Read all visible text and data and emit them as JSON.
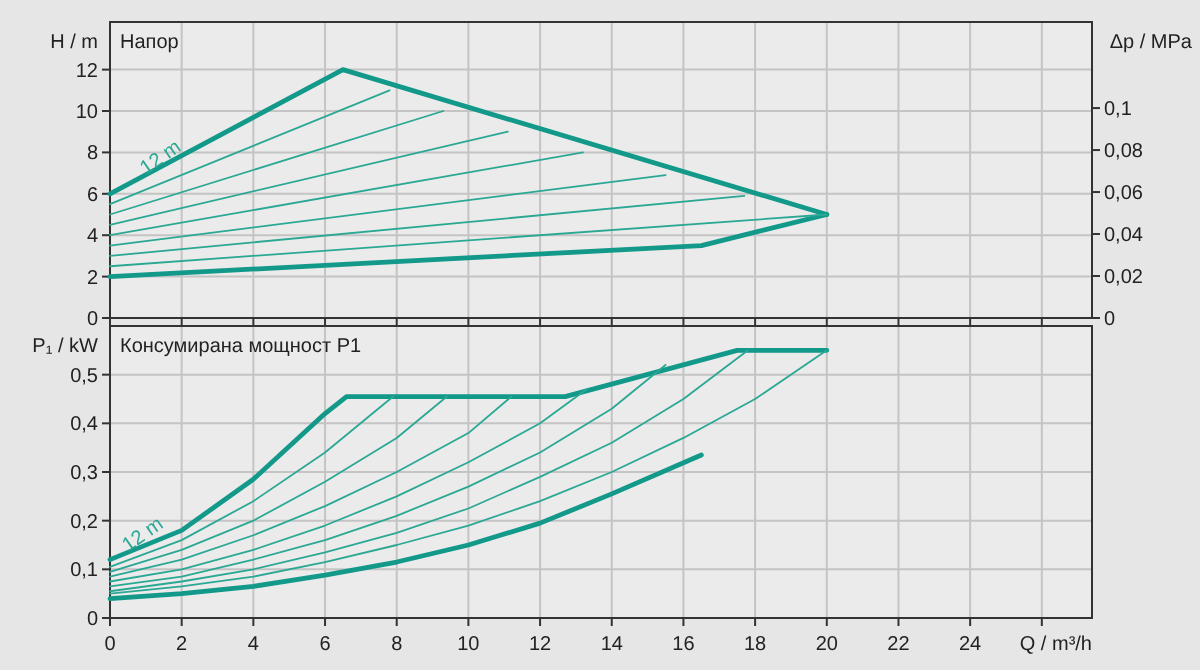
{
  "chart_data": [
    {
      "type": "line",
      "title": "Напор",
      "ylabel": "H / m",
      "y2label": "Δp / MPa",
      "xlim": [
        0,
        27.4
      ],
      "xticks": [
        0,
        2,
        4,
        6,
        8,
        10,
        12,
        14,
        16,
        18,
        20,
        22,
        24,
        {
          "value": 26,
          "label": null
        }
      ],
      "ylim": [
        0,
        14.3
      ],
      "yticks": [
        0,
        2,
        4,
        6,
        8,
        10,
        12
      ],
      "y2lim": [
        0,
        0.141
      ],
      "y2ticks": [
        {
          "value": 0,
          "label": "0"
        },
        {
          "value": 0.02,
          "label": "0,02"
        },
        {
          "value": 0.04,
          "label": "0,04"
        },
        {
          "value": 0.06,
          "label": "0,06"
        },
        {
          "value": 0.08,
          "label": "0,08"
        },
        {
          "value": 0.1,
          "label": "0,1"
        }
      ],
      "grid": true,
      "tick_labels": "y",
      "annotations": [
        {
          "text": "12 m",
          "x": 1,
          "y": 6.9
        }
      ],
      "series": [
        {
          "color": "#12998a",
          "x": [
            0,
            6.5,
            20
          ],
          "values": [
            6,
            12,
            5
          ]
        },
        {
          "color": "#12998a",
          "x": [
            0,
            16.5,
            20
          ],
          "values": [
            2,
            3.5,
            5
          ]
        },
        {
          "color": "#2aa894",
          "x": [
            0,
            7.8
          ],
          "values": [
            5.5,
            11
          ]
        },
        {
          "color": "#2aa894",
          "x": [
            0,
            9.3
          ],
          "values": [
            5,
            10
          ]
        },
        {
          "color": "#2aa894",
          "x": [
            0,
            11.1
          ],
          "values": [
            4.5,
            9
          ]
        },
        {
          "color": "#2aa894",
          "x": [
            0,
            13.2
          ],
          "values": [
            4,
            8
          ]
        },
        {
          "color": "#2aa894",
          "x": [
            0,
            15.5
          ],
          "values": [
            3.5,
            6.9
          ]
        },
        {
          "color": "#2aa894",
          "x": [
            0,
            17.7
          ],
          "values": [
            3,
            5.9
          ]
        },
        {
          "color": "#2aa894",
          "x": [
            0,
            20
          ],
          "values": [
            2.5,
            5
          ]
        }
      ]
    },
    {
      "type": "line",
      "title": "Консумирана мощност P1",
      "ylabel": "P₁ / kW",
      "xlabel": "Q / m³/h",
      "xlim": [
        0,
        27.4
      ],
      "xticks": [
        0,
        2,
        4,
        6,
        8,
        10,
        12,
        14,
        16,
        18,
        20,
        22,
        24,
        {
          "value": 26,
          "label": null
        }
      ],
      "ylim": [
        0,
        0.6
      ],
      "yticks": [
        {
          "value": 0,
          "label": "0"
        },
        {
          "value": 0.1,
          "label": "0,1"
        },
        {
          "value": 0.2,
          "label": "0,2"
        },
        {
          "value": 0.3,
          "label": "0,3"
        },
        {
          "value": 0.4,
          "label": "0,4"
        },
        {
          "value": 0.5,
          "label": "0,5"
        }
      ],
      "grid": true,
      "annotations": [
        {
          "text": "12 m",
          "x": 0.5,
          "y": 0.135
        }
      ],
      "series": [
        {
          "color": "#12998a",
          "x": [
            0,
            2,
            4,
            6,
            6.6,
            12.7,
            17.5,
            20
          ],
          "values": [
            0.12,
            0.18,
            0.285,
            0.42,
            0.455,
            0.455,
            0.55,
            0.55
          ]
        },
        {
          "color": "#12998a",
          "x": [
            0,
            2,
            4,
            6,
            8,
            10,
            12,
            14,
            16.5
          ],
          "values": [
            0.04,
            0.05,
            0.065,
            0.088,
            0.115,
            0.15,
            0.195,
            0.255,
            0.335
          ]
        },
        {
          "color": "#2aa894",
          "x": [
            0,
            2,
            4,
            6,
            7.9
          ],
          "values": [
            0.105,
            0.16,
            0.24,
            0.34,
            0.455
          ]
        },
        {
          "color": "#2aa894",
          "x": [
            0,
            2,
            4,
            6,
            8,
            9.4
          ],
          "values": [
            0.095,
            0.14,
            0.2,
            0.28,
            0.37,
            0.455
          ]
        },
        {
          "color": "#2aa894",
          "x": [
            0,
            2,
            4,
            6,
            8,
            10,
            11.2
          ],
          "values": [
            0.085,
            0.12,
            0.17,
            0.23,
            0.3,
            0.38,
            0.455
          ]
        },
        {
          "color": "#2aa894",
          "x": [
            0,
            2,
            4,
            6,
            8,
            10,
            12,
            13.3
          ],
          "values": [
            0.075,
            0.1,
            0.14,
            0.19,
            0.25,
            0.32,
            0.4,
            0.47
          ]
        },
        {
          "color": "#2aa894",
          "x": [
            0,
            2,
            4,
            6,
            8,
            10,
            12,
            14,
            15.5
          ],
          "values": [
            0.065,
            0.085,
            0.12,
            0.16,
            0.21,
            0.27,
            0.34,
            0.43,
            0.52
          ]
        },
        {
          "color": "#2aa894",
          "x": [
            0,
            2,
            4,
            6,
            8,
            10,
            12,
            14,
            16,
            17.8
          ],
          "values": [
            0.055,
            0.075,
            0.1,
            0.135,
            0.175,
            0.225,
            0.29,
            0.36,
            0.45,
            0.55
          ]
        },
        {
          "color": "#2aa894",
          "x": [
            0,
            2,
            4,
            6,
            8,
            10,
            12,
            14,
            16,
            18,
            20
          ],
          "values": [
            0.05,
            0.065,
            0.085,
            0.115,
            0.15,
            0.19,
            0.24,
            0.3,
            0.37,
            0.45,
            0.55
          ]
        }
      ]
    }
  ]
}
